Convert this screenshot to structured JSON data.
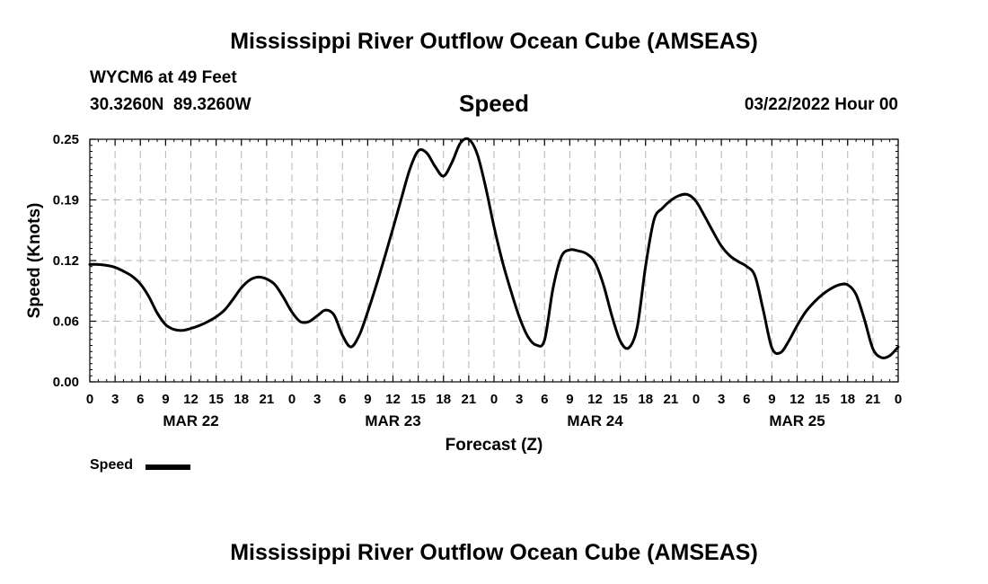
{
  "page_title": "Mississippi River Outflow Ocean Cube (AMSEAS)",
  "footer_title": "Mississippi River Outflow Ocean Cube (AMSEAS)",
  "station": {
    "name_depth": "WYCM6 at 49 Feet",
    "coords": "30.3260N  89.3260W",
    "date": "03/22/2022 Hour 00"
  },
  "parameter": "Speed",
  "legend": {
    "label": "Speed",
    "color": "#000000"
  },
  "chart_data": {
    "type": "line",
    "title": "Speed",
    "xlabel": "Forecast (Z)",
    "ylabel": "Speed (Knots)",
    "xlim": [
      0,
      96
    ],
    "ylim": [
      0,
      0.25
    ],
    "yticks": [
      "0.00",
      "0.06",
      "0.12",
      "0.19",
      "0.25"
    ],
    "ytick_values": [
      0,
      0.0625,
      0.125,
      0.1875,
      0.25
    ],
    "xtick_hours": [
      0,
      3,
      6,
      9,
      12,
      15,
      18,
      21,
      24,
      27,
      30,
      33,
      36,
      39,
      42,
      45,
      48,
      51,
      54,
      57,
      60,
      63,
      66,
      69,
      72,
      75,
      78,
      81,
      84,
      87,
      90,
      93,
      96
    ],
    "xtick_labels": [
      "0",
      "3",
      "6",
      "9",
      "12",
      "15",
      "18",
      "21",
      "0",
      "3",
      "6",
      "9",
      "12",
      "15",
      "18",
      "21",
      "0",
      "3",
      "6",
      "9",
      "12",
      "15",
      "18",
      "21",
      "0",
      "3",
      "6",
      "9",
      "12",
      "15",
      "18",
      "21",
      "0"
    ],
    "day_labels": [
      {
        "hour": 12,
        "label": "MAR 22"
      },
      {
        "hour": 36,
        "label": "MAR 23"
      },
      {
        "hour": 60,
        "label": "MAR 24"
      },
      {
        "hour": 84,
        "label": "MAR 25"
      }
    ],
    "grid": true,
    "series": [
      {
        "name": "Speed",
        "x": [
          0,
          1,
          2,
          3,
          4,
          5,
          6,
          7,
          8,
          9,
          10,
          11,
          12,
          13,
          14,
          15,
          16,
          17,
          18,
          19,
          20,
          21,
          22,
          23,
          24,
          25,
          26,
          27,
          28,
          29,
          30,
          31,
          32,
          33,
          34,
          35,
          36,
          37,
          38,
          39,
          40,
          41,
          42,
          43,
          44,
          45,
          46,
          47,
          48,
          49,
          50,
          51,
          52,
          53,
          54,
          55,
          56,
          57,
          58,
          59,
          60,
          61,
          62,
          63,
          64,
          65,
          66,
          67,
          68,
          69,
          70,
          71,
          72,
          73,
          74,
          75,
          76,
          77,
          78,
          79,
          80,
          81,
          82,
          83,
          84,
          85,
          86,
          87,
          88,
          89,
          90,
          91,
          92,
          93,
          94,
          95,
          96
        ],
        "values": [
          0.121,
          0.121,
          0.12,
          0.118,
          0.114,
          0.109,
          0.101,
          0.088,
          0.071,
          0.059,
          0.054,
          0.053,
          0.055,
          0.058,
          0.062,
          0.067,
          0.074,
          0.085,
          0.097,
          0.105,
          0.108,
          0.106,
          0.1,
          0.087,
          0.072,
          0.062,
          0.062,
          0.068,
          0.074,
          0.069,
          0.048,
          0.036,
          0.048,
          0.072,
          0.099,
          0.128,
          0.158,
          0.189,
          0.219,
          0.238,
          0.236,
          0.222,
          0.212,
          0.226,
          0.246,
          0.25,
          0.235,
          0.201,
          0.16,
          0.124,
          0.094,
          0.067,
          0.047,
          0.038,
          0.043,
          0.096,
          0.129,
          0.136,
          0.135,
          0.132,
          0.123,
          0.1,
          0.068,
          0.042,
          0.035,
          0.056,
          0.119,
          0.167,
          0.179,
          0.187,
          0.192,
          0.193,
          0.186,
          0.171,
          0.155,
          0.14,
          0.13,
          0.124,
          0.119,
          0.109,
          0.073,
          0.035,
          0.03,
          0.042,
          0.058,
          0.072,
          0.082,
          0.09,
          0.096,
          0.1,
          0.1,
          0.09,
          0.064,
          0.034,
          0.025,
          0.027,
          0.036
        ]
      }
    ]
  }
}
